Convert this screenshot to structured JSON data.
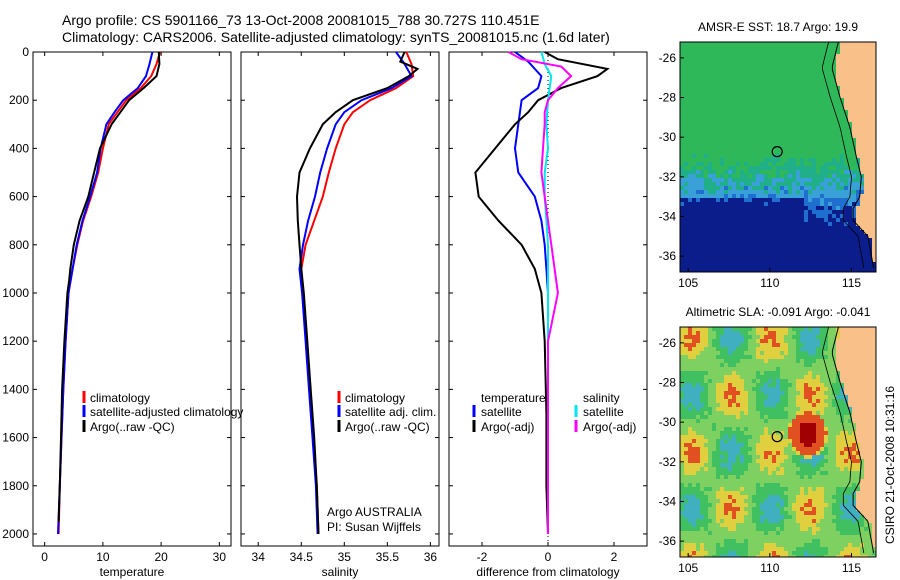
{
  "header": {
    "line1": "Argo profile: CS 5901166_73 13-Oct-2008 20081015_788 30.727S 110.451E",
    "line2": "Climatology: CARS2006. Satellite-adjusted climatology: synTS_20081015.nc (1.6d later)"
  },
  "colors": {
    "climatology": "#ff0000",
    "satellite": "#0000ff",
    "argo": "#000000",
    "sal_satellite": "#00e5ee",
    "sal_argo": "#ff00ff",
    "land": "#f9c08a"
  },
  "chart_data": [
    {
      "type": "line",
      "xlabel": "temperature",
      "ylabel": "",
      "xlim": [
        -2,
        32
      ],
      "ylim": [
        2050,
        0
      ],
      "xticks": [
        0,
        10,
        20,
        30
      ],
      "yticks": [
        0,
        200,
        400,
        600,
        800,
        1000,
        1200,
        1400,
        1600,
        1800,
        2000
      ],
      "legend": [
        "climatology",
        "satellite-adjusted climatology",
        "Argo(..raw -QC)"
      ],
      "legend_position": "lower-center",
      "series": [
        {
          "name": "climatology",
          "color": "#ff0000",
          "points": [
            [
              19.8,
              0
            ],
            [
              19.2,
              50
            ],
            [
              18.3,
              100
            ],
            [
              16.5,
              150
            ],
            [
              14.0,
              200
            ],
            [
              12.5,
              250
            ],
            [
              11.0,
              300
            ],
            [
              10.0,
              400
            ],
            [
              9.2,
              500
            ],
            [
              8.0,
              600
            ],
            [
              6.6,
              700
            ],
            [
              5.6,
              800
            ],
            [
              4.8,
              900
            ],
            [
              4.1,
              1000
            ],
            [
              3.6,
              1200
            ],
            [
              3.2,
              1400
            ],
            [
              2.9,
              1600
            ],
            [
              2.6,
              1800
            ],
            [
              2.4,
              2000
            ]
          ]
        },
        {
          "name": "satellite-adjusted climatology",
          "color": "#0000ff",
          "points": [
            [
              18.5,
              0
            ],
            [
              18.0,
              50
            ],
            [
              17.4,
              100
            ],
            [
              16.0,
              150
            ],
            [
              13.5,
              200
            ],
            [
              12.0,
              250
            ],
            [
              10.6,
              300
            ],
            [
              9.6,
              400
            ],
            [
              9.0,
              500
            ],
            [
              7.8,
              600
            ],
            [
              6.5,
              700
            ],
            [
              5.5,
              800
            ],
            [
              4.8,
              900
            ],
            [
              4.1,
              1000
            ],
            [
              3.6,
              1200
            ],
            [
              3.2,
              1400
            ],
            [
              2.9,
              1600
            ],
            [
              2.6,
              1800
            ],
            [
              2.3,
              2000
            ]
          ]
        },
        {
          "name": "Argo(..raw -QC)",
          "color": "#000000",
          "points": [
            [
              19.6,
              0
            ],
            [
              19.7,
              50
            ],
            [
              19.2,
              100
            ],
            [
              17.0,
              150
            ],
            [
              14.5,
              200
            ],
            [
              13.0,
              250
            ],
            [
              11.5,
              300
            ],
            [
              9.5,
              400
            ],
            [
              8.5,
              500
            ],
            [
              7.5,
              600
            ],
            [
              6.0,
              700
            ],
            [
              5.0,
              800
            ],
            [
              4.4,
              900
            ],
            [
              4.2,
              950
            ],
            [
              3.9,
              1000
            ],
            [
              3.4,
              1200
            ],
            [
              3.0,
              1400
            ],
            [
              2.8,
              1600
            ],
            [
              2.6,
              1800
            ],
            [
              2.4,
              1950
            ]
          ]
        }
      ]
    },
    {
      "type": "line",
      "xlabel": "salinity",
      "ylabel": "",
      "xlim": [
        33.8,
        36.1
      ],
      "ylim": [
        2050,
        0
      ],
      "xticks": [
        34,
        34.5,
        35,
        35.5,
        36
      ],
      "yticks": [
        0,
        200,
        400,
        600,
        800,
        1000,
        1200,
        1400,
        1600,
        1800,
        2000
      ],
      "legend": [
        "climatology",
        "satellite adj. clim.",
        "Argo(..raw -QC)"
      ],
      "legend_position": "lower-right",
      "annotations": [
        "Argo AUSTRALIA",
        "PI: Susan Wijffels"
      ],
      "series": [
        {
          "name": "climatology",
          "color": "#ff0000",
          "points": [
            [
              35.72,
              0
            ],
            [
              35.78,
              50
            ],
            [
              35.8,
              100
            ],
            [
              35.6,
              150
            ],
            [
              35.3,
              200
            ],
            [
              35.1,
              250
            ],
            [
              35.0,
              300
            ],
            [
              34.9,
              400
            ],
            [
              34.82,
              500
            ],
            [
              34.75,
              600
            ],
            [
              34.65,
              700
            ],
            [
              34.55,
              800
            ],
            [
              34.5,
              900
            ],
            [
              34.52,
              1000
            ],
            [
              34.56,
              1200
            ],
            [
              34.6,
              1400
            ],
            [
              34.64,
              1600
            ],
            [
              34.68,
              1800
            ],
            [
              34.7,
              2000
            ]
          ]
        },
        {
          "name": "satellite adj. clim.",
          "color": "#0000ff",
          "points": [
            [
              35.6,
              0
            ],
            [
              35.7,
              50
            ],
            [
              35.78,
              100
            ],
            [
              35.55,
              150
            ],
            [
              35.2,
              200
            ],
            [
              35.0,
              250
            ],
            [
              34.9,
              300
            ],
            [
              34.8,
              400
            ],
            [
              34.72,
              500
            ],
            [
              34.66,
              600
            ],
            [
              34.58,
              700
            ],
            [
              34.52,
              800
            ],
            [
              34.48,
              900
            ],
            [
              34.51,
              1000
            ],
            [
              34.55,
              1200
            ],
            [
              34.59,
              1400
            ],
            [
              34.63,
              1600
            ],
            [
              34.67,
              1800
            ],
            [
              34.69,
              2000
            ]
          ]
        },
        {
          "name": "Argo(..raw -QC)",
          "color": "#000000",
          "points": [
            [
              35.7,
              0
            ],
            [
              35.65,
              40
            ],
            [
              35.85,
              70
            ],
            [
              35.75,
              100
            ],
            [
              35.5,
              150
            ],
            [
              35.1,
              200
            ],
            [
              34.9,
              250
            ],
            [
              34.75,
              300
            ],
            [
              34.6,
              400
            ],
            [
              34.48,
              500
            ],
            [
              34.45,
              600
            ],
            [
              34.46,
              700
            ],
            [
              34.48,
              800
            ],
            [
              34.5,
              900
            ],
            [
              34.53,
              1000
            ],
            [
              34.57,
              1200
            ],
            [
              34.61,
              1400
            ],
            [
              34.65,
              1600
            ],
            [
              34.68,
              1800
            ],
            [
              34.7,
              2000
            ]
          ]
        }
      ]
    },
    {
      "type": "line",
      "xlabel": "difference from climatology",
      "ylabel": "",
      "xlim": [
        -3.0,
        3.0
      ],
      "ylim": [
        2050,
        0
      ],
      "xticks": [
        -2,
        0,
        2
      ],
      "yticks": [
        0,
        200,
        400,
        600,
        800,
        1000,
        1200,
        1400,
        1600,
        1800,
        2000
      ],
      "legend_headers": [
        "temperature",
        "salinity"
      ],
      "legend": [
        "satellite",
        "Argo(-adj)",
        "satellite",
        "Argo(-adj)"
      ],
      "legend_position": "lower-center",
      "series": [
        {
          "name": "temperature satellite",
          "color": "#0000ff",
          "points": [
            [
              -1.0,
              0
            ],
            [
              -0.6,
              40
            ],
            [
              -0.2,
              100
            ],
            [
              -0.3,
              150
            ],
            [
              -0.8,
              200
            ],
            [
              -0.9,
              300
            ],
            [
              -1.0,
              400
            ],
            [
              -0.9,
              500
            ],
            [
              -0.4,
              600
            ],
            [
              -0.2,
              700
            ],
            [
              -0.1,
              800
            ],
            [
              -0.05,
              900
            ],
            [
              0.0,
              1000
            ],
            [
              0.0,
              1200
            ],
            [
              0.0,
              1600
            ],
            [
              0.0,
              2000
            ]
          ]
        },
        {
          "name": "temperature Argo(-adj)",
          "color": "#000000",
          "points": [
            [
              -0.1,
              0
            ],
            [
              0.3,
              30
            ],
            [
              1.8,
              70
            ],
            [
              1.5,
              100
            ],
            [
              0.4,
              150
            ],
            [
              -0.3,
              200
            ],
            [
              -0.6,
              250
            ],
            [
              -1.0,
              300
            ],
            [
              -1.6,
              400
            ],
            [
              -2.2,
              500
            ],
            [
              -2.1,
              600
            ],
            [
              -1.5,
              700
            ],
            [
              -0.8,
              800
            ],
            [
              -0.4,
              900
            ],
            [
              -0.2,
              1000
            ],
            [
              -0.1,
              1200
            ],
            [
              -0.05,
              1500
            ],
            [
              -0.05,
              1800
            ],
            [
              0.0,
              2000
            ]
          ]
        },
        {
          "name": "salinity satellite",
          "color": "#00e5ee",
          "points": [
            [
              -0.2,
              0
            ],
            [
              -0.1,
              50
            ],
            [
              0.1,
              100
            ],
            [
              0.05,
              150
            ],
            [
              0.0,
              200
            ],
            [
              -0.05,
              300
            ],
            [
              0.0,
              400
            ],
            [
              -0.1,
              500
            ],
            [
              -0.1,
              600
            ],
            [
              -0.05,
              700
            ],
            [
              0.0,
              800
            ],
            [
              0.0,
              1000
            ],
            [
              0.0,
              1500
            ],
            [
              0.0,
              2000
            ]
          ]
        },
        {
          "name": "salinity Argo(-adj)",
          "color": "#ff00ff",
          "points": [
            [
              -1.2,
              0
            ],
            [
              -0.8,
              30
            ],
            [
              0.4,
              60
            ],
            [
              0.7,
              100
            ],
            [
              0.3,
              150
            ],
            [
              0.0,
              200
            ],
            [
              -0.1,
              250
            ],
            [
              -0.1,
              300
            ],
            [
              -0.15,
              400
            ],
            [
              -0.2,
              500
            ],
            [
              -0.1,
              600
            ],
            [
              0.0,
              700
            ],
            [
              0.1,
              800
            ],
            [
              0.2,
              900
            ],
            [
              0.3,
              1000
            ],
            [
              0.15,
              1100
            ],
            [
              0.0,
              1200
            ],
            [
              0.0,
              1600
            ],
            [
              0.0,
              2000
            ]
          ]
        }
      ]
    },
    {
      "type": "heatmap",
      "title": "AMSR-E SST: 18.7 Argo: 19.9",
      "xlim": [
        104.5,
        116.5
      ],
      "ylim": [
        -36.8,
        -25.2
      ],
      "xticks": [
        105,
        110,
        115
      ],
      "yticks": [
        -26,
        -28,
        -30,
        -32,
        -34,
        -36
      ],
      "marker": {
        "lon": 110.45,
        "lat": -30.73
      }
    },
    {
      "type": "heatmap",
      "title": "Altimetric SLA: -0.091 Argo: -0.041",
      "xlim": [
        104.5,
        116.5
      ],
      "ylim": [
        -36.8,
        -25.2
      ],
      "xticks": [
        105,
        110,
        115
      ],
      "yticks": [
        -26,
        -28,
        -30,
        -32,
        -34,
        -36
      ],
      "marker": {
        "lon": 110.45,
        "lat": -30.73
      }
    }
  ],
  "footer": {
    "stamp": "CSIRO 21-Oct-2008 10:31:16"
  }
}
